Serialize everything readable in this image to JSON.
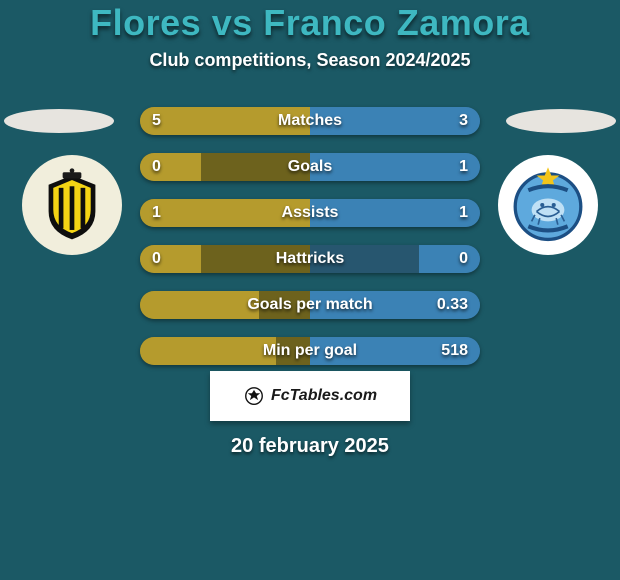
{
  "background_color": "#1b5965",
  "title": "Flores vs Franco Zamora",
  "title_color": "#3eb8c1",
  "subtitle": "Club competitions, Season 2024/2025",
  "footer_brand": "FcTables.com",
  "date_text": "20 february 2025",
  "left_player": {
    "accent": "#b59b2d",
    "bg_dim": "#6d621d",
    "ellipse": "#e7e4df",
    "logo_bg": "#f1eedc"
  },
  "right_player": {
    "accent": "#3b82b5",
    "bg_dim": "#27566f",
    "ellipse": "#e7e4df",
    "logo_bg": "#ffffff"
  },
  "stats": [
    {
      "label": "Matches",
      "left_val": "5",
      "right_val": "3",
      "left_pct": 50,
      "right_pct": 50
    },
    {
      "label": "Goals",
      "left_val": "0",
      "right_val": "1",
      "left_pct": 18,
      "right_pct": 50
    },
    {
      "label": "Assists",
      "left_val": "1",
      "right_val": "1",
      "left_pct": 50,
      "right_pct": 50
    },
    {
      "label": "Hattricks",
      "left_val": "0",
      "right_val": "0",
      "left_pct": 18,
      "right_pct": 18
    },
    {
      "label": "Goals per match",
      "left_val": "",
      "right_val": "0.33",
      "left_pct": 35,
      "right_pct": 50
    },
    {
      "label": "Min per goal",
      "left_val": "",
      "right_val": "518",
      "left_pct": 40,
      "right_pct": 50
    }
  ],
  "logos": {
    "left_svg_label": "real-espana-crest-icon",
    "right_svg_label": "cd-victoria-crest-icon"
  }
}
